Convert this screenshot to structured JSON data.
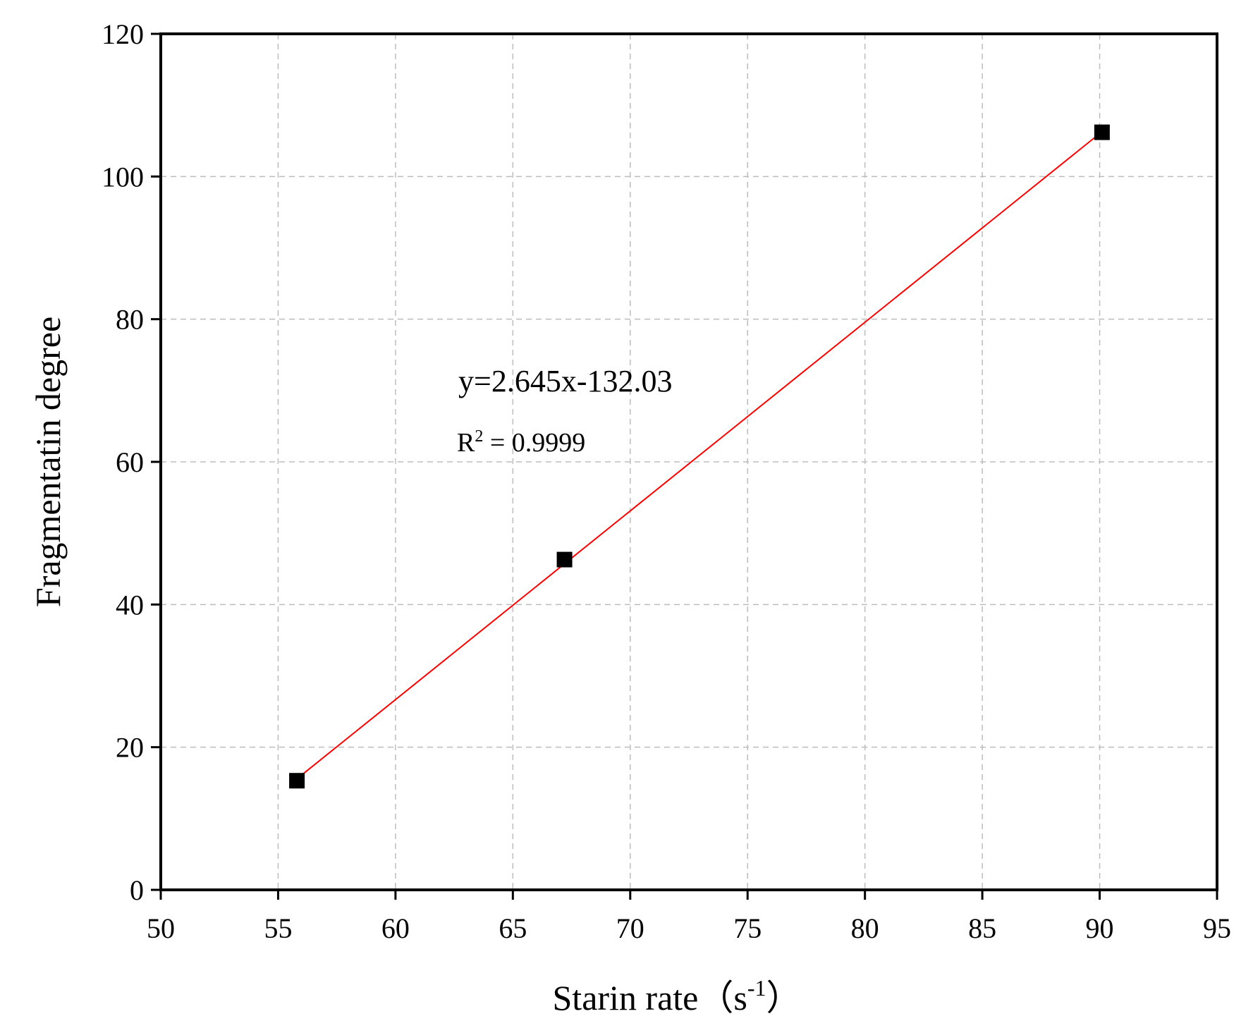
{
  "chart_data": {
    "type": "scatter",
    "title": "",
    "xlabel": "Starin rate",
    "xlabel_unit": "（s",
    "xlabel_unit_sup": "-1",
    "xlabel_unit_close": "）",
    "ylabel": "Fragmentatin degree",
    "xlim": [
      50,
      95
    ],
    "ylim": [
      0,
      120
    ],
    "xticks": [
      50,
      55,
      60,
      65,
      70,
      75,
      80,
      85,
      90,
      95
    ],
    "yticks": [
      0,
      20,
      40,
      60,
      80,
      100,
      120
    ],
    "grid": true,
    "series": [
      {
        "marker": "square",
        "color": "#000000",
        "points": [
          {
            "x": 55.8,
            "y": 15.3
          },
          {
            "x": 67.2,
            "y": 46.3
          },
          {
            "x": 90.1,
            "y": 106.2
          }
        ]
      }
    ],
    "fit": {
      "color": "#ff0000",
      "slope": 2.645,
      "intercept": -132.03,
      "x_range": [
        55.8,
        90.1
      ]
    },
    "annotations": {
      "equation": "y=2.645x-132.03",
      "r2_prefix": "R",
      "r2_sup": "2",
      "r2_value": " = 0.9999"
    }
  }
}
